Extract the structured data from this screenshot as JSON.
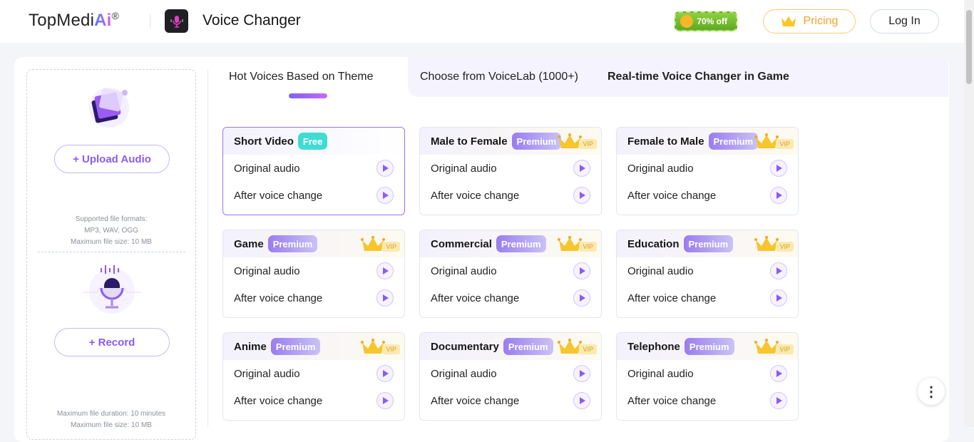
{
  "header": {
    "logo_text": "TopMedi",
    "logo_ai": "Ai",
    "logo_mark": "®",
    "app_title": "Voice Changer",
    "promo": "70% off",
    "pricing": "Pricing",
    "login": "Log In"
  },
  "upload": {
    "upload_button": "+ Upload Audio",
    "formats_title": "Supported file formats:",
    "formats": "MP3, WAV, OGG",
    "max_size": "Maximum file size: 10 MB",
    "record_button": "+ Record",
    "max_duration": "Maximum file duration: 10 minutes",
    "record_max_size": "Maximum file size: 10 MB"
  },
  "tabs": [
    {
      "label": "Hot Voices Based on Theme",
      "active": true
    },
    {
      "label": "Choose from VoiceLab (1000+)",
      "active": false
    },
    {
      "label": "Real-time Voice Changer in Game",
      "active": false
    }
  ],
  "card_rows": {
    "original": "Original audio",
    "after": "After voice change"
  },
  "vip_label": "VIP",
  "cards": [
    {
      "title": "Short Video",
      "badge": "Free",
      "selected": true
    },
    {
      "title": "Male to Female",
      "badge": "Premium"
    },
    {
      "title": "Female to Male",
      "badge": "Premium"
    },
    {
      "title": "Game",
      "badge": "Premium"
    },
    {
      "title": "Commercial",
      "badge": "Premium"
    },
    {
      "title": "Education",
      "badge": "Premium"
    },
    {
      "title": "Anime",
      "badge": "Premium"
    },
    {
      "title": "Documentary",
      "badge": "Premium"
    },
    {
      "title": "Telephone",
      "badge": "Premium"
    }
  ],
  "colors": {
    "accent": "#8a5cf6",
    "free": "#3fdcd3",
    "pricing": "#ff9e26"
  }
}
